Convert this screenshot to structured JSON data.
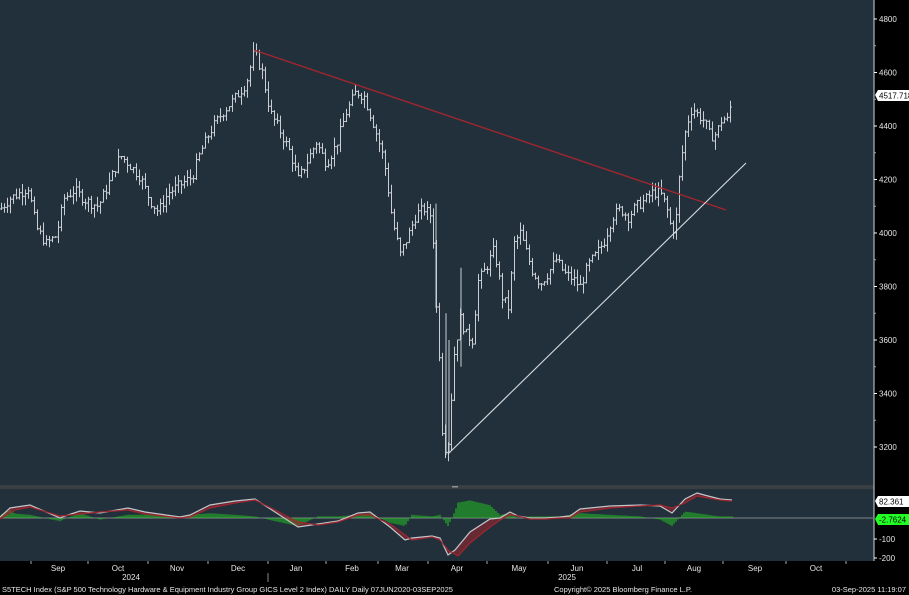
{
  "footer": {
    "description": "S5TECH Index (S&P 500 Technology Hardware & Equipment Industry Group GICS Level 2 Index) DAILY  Daily 07JUN2020-03SEP2025",
    "copyright": "Copyright© 2025 Bloomberg Finance L.P.",
    "timestamp": "03-Sep-2025 11:19:07"
  },
  "price_panel": {
    "last_price_label": "4517.7188",
    "y_ticks": [
      "4800",
      "4600",
      "4400",
      "4200",
      "4000",
      "3800",
      "3600",
      "3400",
      "3200"
    ]
  },
  "macd_panel": {
    "signal_label": "82.361",
    "histogram_label": "-2.7624",
    "y_ticks": [
      "-100",
      "-200"
    ]
  },
  "x_axis": {
    "months": [
      "Sep",
      "Oct",
      "Nov",
      "Dec",
      "Jan",
      "Feb",
      "Mar",
      "Apr",
      "May",
      "Jun",
      "Jul",
      "Aug",
      "Sep",
      "Oct"
    ],
    "years": [
      "2024",
      "2025"
    ]
  },
  "colors": {
    "background": "#22303c",
    "axis_bg": "#000000",
    "bars": "#c8ced4",
    "resistance_line": "#a0262e",
    "support_line": "#d8dcdf",
    "macd_hist": "#22c81e",
    "macd_fast": "#b9bcc0",
    "macd_slow": "#a0262e",
    "hist_label_bg": "#22ff22"
  },
  "chart_data": [
    {
      "type": "ohlc",
      "title": "S5TECH Index (S&P 500 Technology Hardware & Equipment Industry Group GICS Level 2 Index) DAILY",
      "xlabel": "",
      "ylabel": "",
      "ylim": [
        3080,
        4880
      ],
      "y_ticks": [
        3200,
        3400,
        3600,
        3800,
        4000,
        4200,
        4400,
        4600,
        4800
      ],
      "x_ticks": [
        "Sep 2024",
        "Oct 2024",
        "Nov 2024",
        "Dec 2024",
        "Jan 2025",
        "Feb 2025",
        "Mar 2025",
        "Apr 2025",
        "May 2025",
        "Jun 2025",
        "Jul 2025",
        "Aug 2025",
        "Sep 2025",
        "Oct 2025"
      ],
      "last_price": 4517.7188,
      "approx_closes": {
        "x": [
          "Aug-2024 start",
          "Sep-2024 mid",
          "Oct-2024 start",
          "Oct-2024 mid",
          "Nov-2024 start",
          "Nov-2024 mid",
          "Dec-2024 start",
          "Dec-2024 peak",
          "Jan-2025 start",
          "Jan-2025 mid",
          "Feb-2025 start",
          "Feb-2025 peak",
          "Mar-2025 start",
          "Mar-2025 mid",
          "Apr-2025 low",
          "Apr-2025 mid",
          "May-2025 start",
          "May-2025 mid",
          "Jun-2025 start",
          "Jun-2025 end",
          "Jul-2025 mid",
          "Jul-2025 end",
          "Aug-2025 start",
          "Aug-2025 mid",
          "Aug-2025 end",
          "Sep-2025 start"
        ],
        "values": [
          4100,
          3970,
          4200,
          4300,
          4100,
          4200,
          4450,
          4690,
          4450,
          4250,
          4300,
          4540,
          4350,
          3950,
          3170,
          3650,
          3900,
          3990,
          3850,
          3950,
          4120,
          4000,
          4480,
          4350,
          4450,
          4518
        ]
      },
      "annotations": [
        {
          "type": "trendline",
          "name": "resistance",
          "color": "#a0262e",
          "from": [
            "Dec-2024 peak",
            4690
          ],
          "to": [
            "Aug-2025 mid",
            4090
          ]
        },
        {
          "type": "trendline",
          "name": "support",
          "color": "#d8dcdf",
          "from": [
            "Apr-2025 low",
            3170
          ],
          "to": [
            "Aug-2025 end",
            4260
          ]
        }
      ]
    },
    {
      "type": "macd",
      "title": "MACD",
      "series": [
        {
          "name": "MACD",
          "last": 82.361
        },
        {
          "name": "Histogram",
          "last": -2.7624
        }
      ],
      "y_ticks": [
        -100,
        -200
      ]
    }
  ]
}
